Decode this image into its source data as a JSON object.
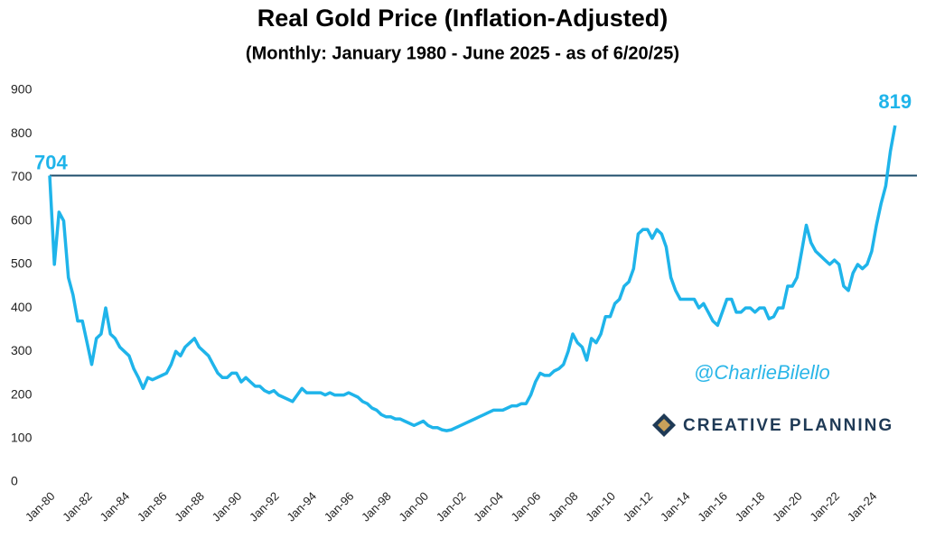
{
  "chart_data": {
    "type": "line",
    "title": "Real Gold Price (Inflation-Adjusted)",
    "subtitle": "(Monthly: January 1980 - June 2025 - as of 6/20/25)",
    "categories": [
      "Jan-80",
      null,
      null,
      null,
      null,
      null,
      null,
      null,
      "Jan-82",
      null,
      null,
      null,
      null,
      null,
      null,
      null,
      "Jan-84",
      null,
      null,
      null,
      null,
      null,
      null,
      null,
      "Jan-86",
      null,
      null,
      null,
      null,
      null,
      null,
      null,
      "Jan-88",
      null,
      null,
      null,
      null,
      null,
      null,
      null,
      "Jan-90",
      null,
      null,
      null,
      null,
      null,
      null,
      null,
      "Jan-92",
      null,
      null,
      null,
      null,
      null,
      null,
      null,
      "Jan-94",
      null,
      null,
      null,
      null,
      null,
      null,
      null,
      "Jan-96",
      null,
      null,
      null,
      null,
      null,
      null,
      null,
      "Jan-98",
      null,
      null,
      null,
      null,
      null,
      null,
      null,
      "Jan-00",
      null,
      null,
      null,
      null,
      null,
      null,
      null,
      "Jan-02",
      null,
      null,
      null,
      null,
      null,
      null,
      null,
      "Jan-04",
      null,
      null,
      null,
      null,
      null,
      null,
      null,
      "Jan-06",
      null,
      null,
      null,
      null,
      null,
      null,
      null,
      "Jan-08",
      null,
      null,
      null,
      null,
      null,
      null,
      null,
      "Jan-10",
      null,
      null,
      null,
      null,
      null,
      null,
      null,
      "Jan-12",
      null,
      null,
      null,
      null,
      null,
      null,
      null,
      "Jan-14",
      null,
      null,
      null,
      null,
      null,
      null,
      null,
      "Jan-16",
      null,
      null,
      null,
      null,
      null,
      null,
      null,
      "Jan-18",
      null,
      null,
      null,
      null,
      null,
      null,
      null,
      "Jan-20",
      null,
      null,
      null,
      null,
      null,
      null,
      null,
      "Jan-22",
      null,
      null,
      null,
      null,
      null,
      null,
      null,
      "Jan-24",
      null,
      null,
      null,
      null,
      null
    ],
    "values": [
      704,
      500,
      620,
      600,
      470,
      430,
      370,
      370,
      320,
      270,
      330,
      340,
      400,
      340,
      330,
      310,
      300,
      290,
      260,
      240,
      215,
      240,
      235,
      240,
      245,
      250,
      270,
      300,
      290,
      310,
      320,
      330,
      310,
      300,
      290,
      270,
      250,
      240,
      240,
      250,
      250,
      230,
      240,
      230,
      220,
      220,
      210,
      205,
      210,
      200,
      195,
      190,
      185,
      200,
      215,
      205,
      205,
      205,
      205,
      200,
      205,
      200,
      200,
      200,
      205,
      200,
      195,
      185,
      180,
      170,
      165,
      155,
      150,
      150,
      145,
      145,
      140,
      135,
      130,
      135,
      140,
      130,
      125,
      125,
      120,
      118,
      120,
      125,
      130,
      135,
      140,
      145,
      150,
      155,
      160,
      165,
      165,
      165,
      170,
      175,
      175,
      180,
      180,
      200,
      230,
      250,
      245,
      245,
      255,
      260,
      270,
      300,
      340,
      320,
      310,
      280,
      330,
      320,
      340,
      380,
      380,
      410,
      420,
      450,
      460,
      490,
      570,
      580,
      580,
      560,
      580,
      570,
      540,
      470,
      440,
      420,
      420,
      420,
      420,
      400,
      410,
      390,
      370,
      360,
      390,
      420,
      420,
      390,
      390,
      400,
      400,
      390,
      400,
      400,
      375,
      380,
      400,
      400,
      450,
      450,
      470,
      530,
      590,
      550,
      530,
      520,
      510,
      500,
      510,
      500,
      450,
      440,
      480,
      500,
      490,
      500,
      530,
      590,
      640,
      680,
      760,
      819
    ],
    "color": "#1fb4ea",
    "hline": 704,
    "hline_color": "#1f4e6b",
    "ylim": [
      0,
      900
    ],
    "yticks": [
      0,
      100,
      200,
      300,
      400,
      500,
      600,
      700,
      800,
      900
    ],
    "grid": false,
    "watermarks": [
      "@CharlieBilello",
      "CREATIVE PLANNING"
    ]
  }
}
